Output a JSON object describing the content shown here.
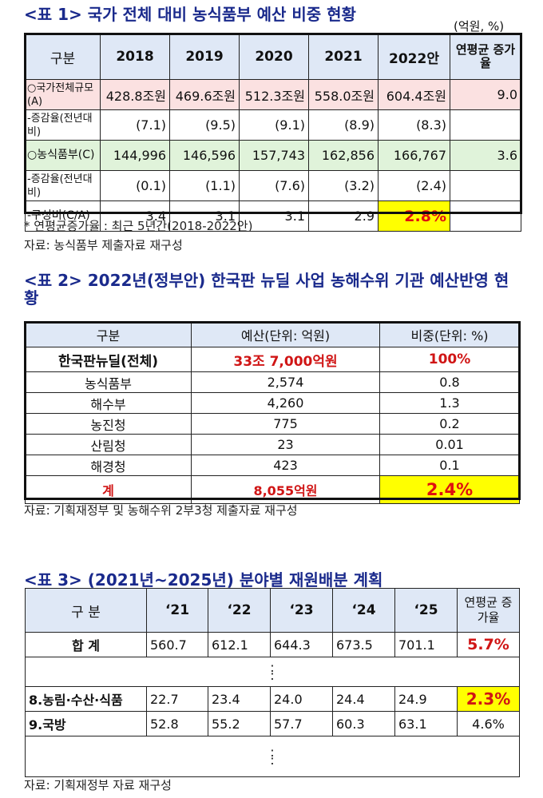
{
  "table1": {
    "title": "<표 1> 국가 전체 대비 농식품부 예산 비중 현황",
    "unit": "(억원, %)",
    "headers": [
      "구분",
      "2018",
      "2019",
      "2020",
      "2021",
      "2022안",
      "연평균 증가율"
    ],
    "rows": [
      {
        "label": "○국가전체규모(A)",
        "values": [
          "428.8조원",
          "469.6조원",
          "512.3조원",
          "558.0조원",
          "604.4조원",
          "9.0"
        ]
      },
      {
        "label": "-증감율(전년대비)",
        "values": [
          "(7.1)",
          "(9.5)",
          "(9.1)",
          "(8.9)",
          "(8.3)",
          ""
        ]
      },
      {
        "label": "○농식품부(C)",
        "values": [
          "144,996",
          "146,596",
          "157,743",
          "162,856",
          "166,767",
          "3.6"
        ]
      },
      {
        "label": "-증감율(전년대비)",
        "values": [
          "(0.1)",
          "(1.1)",
          "(7.6)",
          "(3.2)",
          "(2.4)",
          ""
        ]
      },
      {
        "label": "-구성비(C/A)",
        "values": [
          "3.4",
          "3.1",
          "3.1",
          "2.9",
          "2.8%",
          ""
        ]
      }
    ],
    "footnote": "* 연평균증가율 : 최근 5년간(2018-2022안)",
    "source": "자료: 농식품부 제출자료 재구성"
  },
  "table2": {
    "title": "<표 2> 2022년(정부안) 한국판 뉴딜 사업 농해수위 기관 예산반영 현황",
    "headers": [
      "구분",
      "예산(단위: 억원)",
      "비중(단위: %)"
    ],
    "total": {
      "label": "한국판뉴딜(전체)",
      "budget": "33조 7,000억원",
      "share": "100%"
    },
    "rows": [
      {
        "label": "농식품부",
        "budget": "2,574",
        "share": "0.8"
      },
      {
        "label": "해수부",
        "budget": "4,260",
        "share": "1.3"
      },
      {
        "label": "농진청",
        "budget": "775",
        "share": "0.2"
      },
      {
        "label": "산림청",
        "budget": "23",
        "share": "0.01"
      },
      {
        "label": "해경청",
        "budget": "423",
        "share": "0.1"
      }
    ],
    "sum": {
      "label": "계",
      "budget": "8,055억원",
      "share": "2.4%"
    },
    "source": "자료: 기획재정부 및 농해수위 2부3청 제출자료 재구성"
  },
  "table3": {
    "title": "<표 3> (2021년~2025년) 분야별 재원배분 계획",
    "headers": [
      "구 분",
      "‘21",
      "‘22",
      "‘23",
      "‘24",
      "‘25",
      "연평균 증가율"
    ],
    "rows": [
      {
        "label": "합 계",
        "values": [
          "560.7",
          "612.1",
          "644.3",
          "673.5",
          "701.1",
          "5.7%"
        ]
      },
      {
        "label": "8.농림·수산·식품",
        "values": [
          "22.7",
          "23.4",
          "24.0",
          "24.4",
          "24.9",
          "2.3%"
        ]
      },
      {
        "label": "9.국방",
        "values": [
          "52.8",
          "55.2",
          "57.7",
          "60.3",
          "63.1",
          "4.6%"
        ]
      }
    ],
    "ellipsis": ":",
    "source": "자료: 기획재정부 자료 재구성"
  }
}
